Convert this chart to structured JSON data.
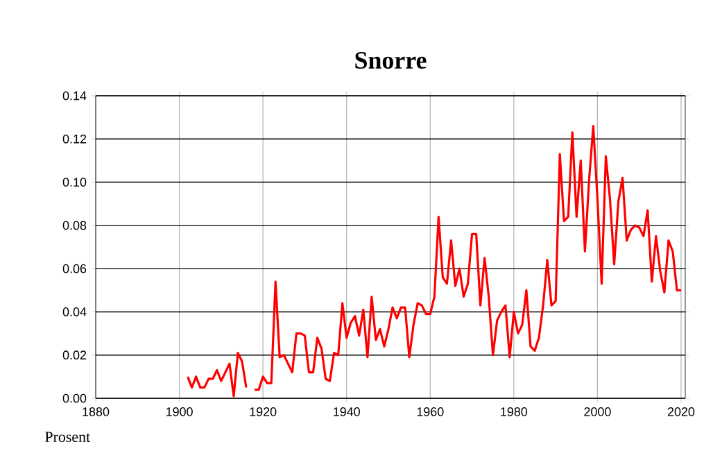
{
  "chart_data": {
    "type": "line",
    "title": "Snorre",
    "ylabel": "Prosent",
    "xlim": [
      1880,
      2021
    ],
    "ylim": [
      0,
      0.14
    ],
    "xticks": [
      1880,
      1900,
      1920,
      1940,
      1960,
      1980,
      2000,
      2020
    ],
    "yticks": [
      {
        "value": 0,
        "label": "0.00"
      },
      {
        "value": 0.02,
        "label": "0.02"
      },
      {
        "value": 0.04,
        "label": "0.04"
      },
      {
        "value": 0.06,
        "label": "0.06"
      },
      {
        "value": 0.08,
        "label": "0.08"
      },
      {
        "value": 0.1,
        "label": "0.10"
      },
      {
        "value": 0.12,
        "label": "0.12"
      },
      {
        "value": 0.14,
        "label": "0.14"
      }
    ],
    "grid": true,
    "marker": "none",
    "line_style": "solid",
    "x": [
      1902,
      1903,
      1904,
      1905,
      1906,
      1907,
      1908,
      1909,
      1910,
      1911,
      1912,
      1913,
      1914,
      1915,
      1916,
      1917,
      1918,
      1919,
      1920,
      1921,
      1922,
      1923,
      1924,
      1925,
      1926,
      1927,
      1928,
      1929,
      1930,
      1931,
      1932,
      1933,
      1934,
      1935,
      1936,
      1937,
      1938,
      1939,
      1940,
      1941,
      1942,
      1943,
      1944,
      1945,
      1946,
      1947,
      1948,
      1949,
      1950,
      1951,
      1952,
      1953,
      1954,
      1955,
      1956,
      1957,
      1958,
      1959,
      1960,
      1961,
      1962,
      1963,
      1964,
      1965,
      1966,
      1967,
      1968,
      1969,
      1970,
      1971,
      1972,
      1973,
      1974,
      1975,
      1976,
      1977,
      1978,
      1979,
      1980,
      1981,
      1982,
      1983,
      1984,
      1985,
      1986,
      1987,
      1988,
      1989,
      1990,
      1991,
      1992,
      1993,
      1994,
      1995,
      1996,
      1997,
      1998,
      1999,
      2000,
      2001,
      2002,
      2003,
      2004,
      2005,
      2006,
      2007,
      2008,
      2009,
      2010,
      2011,
      2012,
      2013,
      2014,
      2015,
      2016,
      2017,
      2018,
      2019,
      2020
    ],
    "series": [
      {
        "color": "#ff0000",
        "values": [
          0.01,
          0.005,
          0.01,
          0.005,
          0.005,
          0.009,
          0.009,
          0.013,
          0.008,
          0.012,
          0.016,
          0.001,
          0.021,
          0.017,
          0.005,
          null,
          0.004,
          0.004,
          0.01,
          0.007,
          0.007,
          0.054,
          0.019,
          0.02,
          0.016,
          0.012,
          0.03,
          0.03,
          0.029,
          0.012,
          0.012,
          0.028,
          0.023,
          0.009,
          0.008,
          0.021,
          0.02,
          0.044,
          0.028,
          0.035,
          0.038,
          0.029,
          0.041,
          0.019,
          0.047,
          0.027,
          0.032,
          0.024,
          0.032,
          0.042,
          0.037,
          0.042,
          0.042,
          0.019,
          0.034,
          0.044,
          0.043,
          0.039,
          0.039,
          0.047,
          0.084,
          0.056,
          0.053,
          0.073,
          0.052,
          0.06,
          0.047,
          0.053,
          0.076,
          0.076,
          0.043,
          0.065,
          0.047,
          0.02,
          0.036,
          0.04,
          0.043,
          0.019,
          0.04,
          0.03,
          0.034,
          0.05,
          0.024,
          0.022,
          0.028,
          0.043,
          0.064,
          0.043,
          0.045,
          0.113,
          0.082,
          0.084,
          0.123,
          0.084,
          0.11,
          0.068,
          0.101,
          0.126,
          0.092,
          0.053,
          0.112,
          0.092,
          0.062,
          0.091,
          0.102,
          0.073,
          0.078,
          0.08,
          0.079,
          0.075,
          0.087,
          0.054,
          0.075,
          0.059,
          0.049,
          0.073,
          0.068,
          0.05,
          0.05
        ]
      }
    ]
  }
}
